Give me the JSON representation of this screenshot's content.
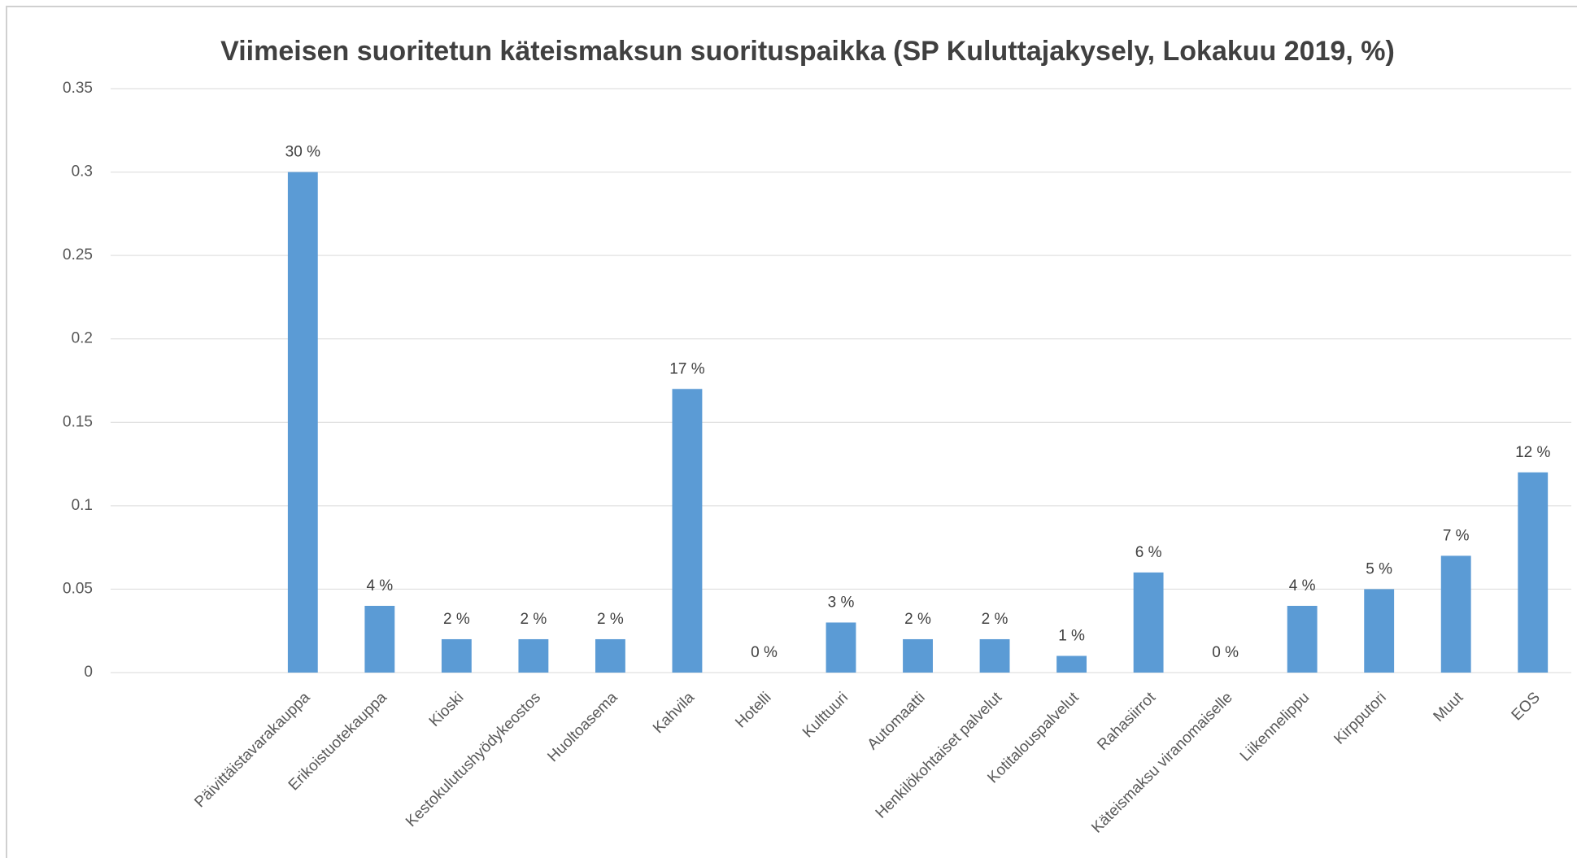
{
  "chart_data": {
    "type": "bar",
    "title": "Viimeisen suoritetun käteismaksun suorituspaikka (SP Kuluttajakysely, Lokakuu 2019, %)",
    "categories": [
      null,
      null,
      "Päivittäistavarakauppa",
      "Erikoistuotekauppa",
      "Kioski",
      "Kestokulutushyödykeostos",
      "Huoltoasema",
      "Kahvila",
      "Hotelli",
      "Kulttuuri",
      "Automaatti",
      "Henkilökohtaiset palvelut",
      "Kotitalouspalvelut",
      "Rahasiirrot",
      "Käteismaksu viranomaiselle",
      "Liikennelippu",
      "Kirpputori",
      "Muut",
      "EOS"
    ],
    "values": [
      null,
      null,
      0.3,
      0.04,
      0.02,
      0.02,
      0.02,
      0.17,
      0,
      0.03,
      0.02,
      0.02,
      0.01,
      0.06,
      0,
      0.04,
      0.05,
      0.07,
      0.12
    ],
    "value_labels": [
      null,
      null,
      "30 %",
      "4 %",
      "2 %",
      "2 %",
      "2 %",
      "17 %",
      "0 %",
      "3 %",
      "2 %",
      "2 %",
      "1 %",
      "6 %",
      "0 %",
      "4 %",
      "5 %",
      "7 %",
      "12 %"
    ],
    "color": "#5b9bd5",
    "ylim": [
      0,
      0.35
    ],
    "yticks": [
      0,
      0.05,
      0.1,
      0.15,
      0.2,
      0.25,
      0.3,
      0.35
    ],
    "grid": true
  }
}
